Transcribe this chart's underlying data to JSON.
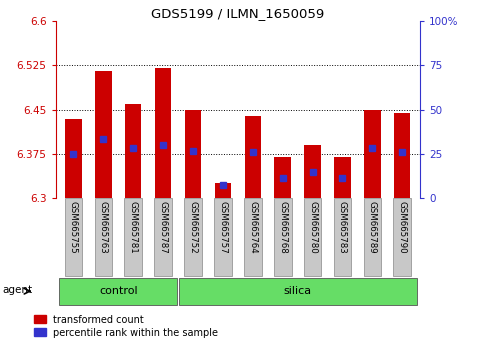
{
  "title": "GDS5199 / ILMN_1650059",
  "samples": [
    "GSM665755",
    "GSM665763",
    "GSM665781",
    "GSM665787",
    "GSM665752",
    "GSM665757",
    "GSM665764",
    "GSM665768",
    "GSM665780",
    "GSM665783",
    "GSM665789",
    "GSM665790"
  ],
  "groups": [
    "control",
    "control",
    "control",
    "control",
    "silica",
    "silica",
    "silica",
    "silica",
    "silica",
    "silica",
    "silica",
    "silica"
  ],
  "transformed_count": [
    6.435,
    6.515,
    6.46,
    6.52,
    6.45,
    6.325,
    6.44,
    6.37,
    6.39,
    6.37,
    6.45,
    6.445
  ],
  "percentile_rank": [
    6.375,
    6.4,
    6.385,
    6.39,
    6.38,
    6.322,
    6.378,
    6.335,
    6.345,
    6.335,
    6.385,
    6.378
  ],
  "ymin": 6.3,
  "ymax": 6.6,
  "yticks": [
    6.3,
    6.375,
    6.45,
    6.525,
    6.6
  ],
  "ytick_labels": [
    "6.3",
    "6.375",
    "6.45",
    "6.525",
    "6.6"
  ],
  "y2ticks": [
    0,
    25,
    50,
    75,
    100
  ],
  "y2tick_labels": [
    "0",
    "25",
    "50",
    "75",
    "100%"
  ],
  "bar_color": "#cc0000",
  "blue_color": "#3333cc",
  "group_color": "#66dd66",
  "axis_color_left": "#cc0000",
  "axis_color_right": "#3333cc",
  "background_bar": "#c8c8c8",
  "legend_red": "transformed count",
  "legend_blue": "percentile rank within the sample",
  "bar_width": 0.55,
  "base": 6.3
}
